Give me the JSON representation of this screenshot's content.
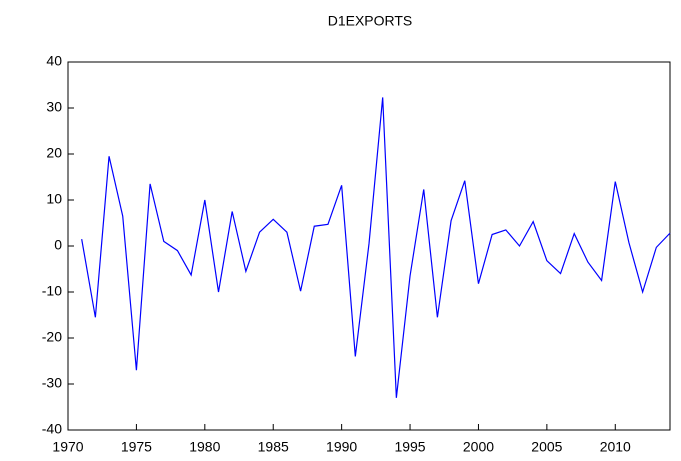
{
  "chart_data": {
    "type": "line",
    "title": "D1EXPORTS",
    "x": [
      1971,
      1972,
      1973,
      1974,
      1975,
      1976,
      1977,
      1978,
      1979,
      1980,
      1981,
      1982,
      1983,
      1984,
      1985,
      1986,
      1987,
      1988,
      1989,
      1990,
      1991,
      1992,
      1993,
      1994,
      1995,
      1996,
      1997,
      1998,
      1999,
      2000,
      2001,
      2002,
      2003,
      2004,
      2005,
      2006,
      2007,
      2008,
      2009,
      2010,
      2011,
      2012,
      2013,
      2014
    ],
    "series": [
      {
        "name": "D1EXPORTS",
        "color": "#0000ff",
        "values": [
          1.5,
          -15.5,
          19.5,
          6.5,
          -27,
          13.5,
          1,
          -1,
          -6.3,
          10,
          -10,
          7.5,
          -5.5,
          3,
          5.8,
          3,
          -9.8,
          4.3,
          4.7,
          13.2,
          -24,
          0.5,
          32.3,
          -33,
          -6.5,
          12.3,
          -15.5,
          5.5,
          14.2,
          -8.2,
          2.5,
          3.5,
          0,
          5.3,
          -3.2,
          -6,
          2.7,
          -3.5,
          -7.5,
          14,
          0.7,
          -10,
          -0.3,
          2.8
        ]
      }
    ],
    "xlim": [
      1970,
      2014
    ],
    "xticks": [
      1970,
      1975,
      1980,
      1985,
      1990,
      1995,
      2000,
      2005,
      2010
    ],
    "ylim": [
      -40,
      40
    ],
    "yticks": [
      -40,
      -30,
      -20,
      -10,
      0,
      10,
      20,
      30,
      40
    ],
    "grid": false
  }
}
